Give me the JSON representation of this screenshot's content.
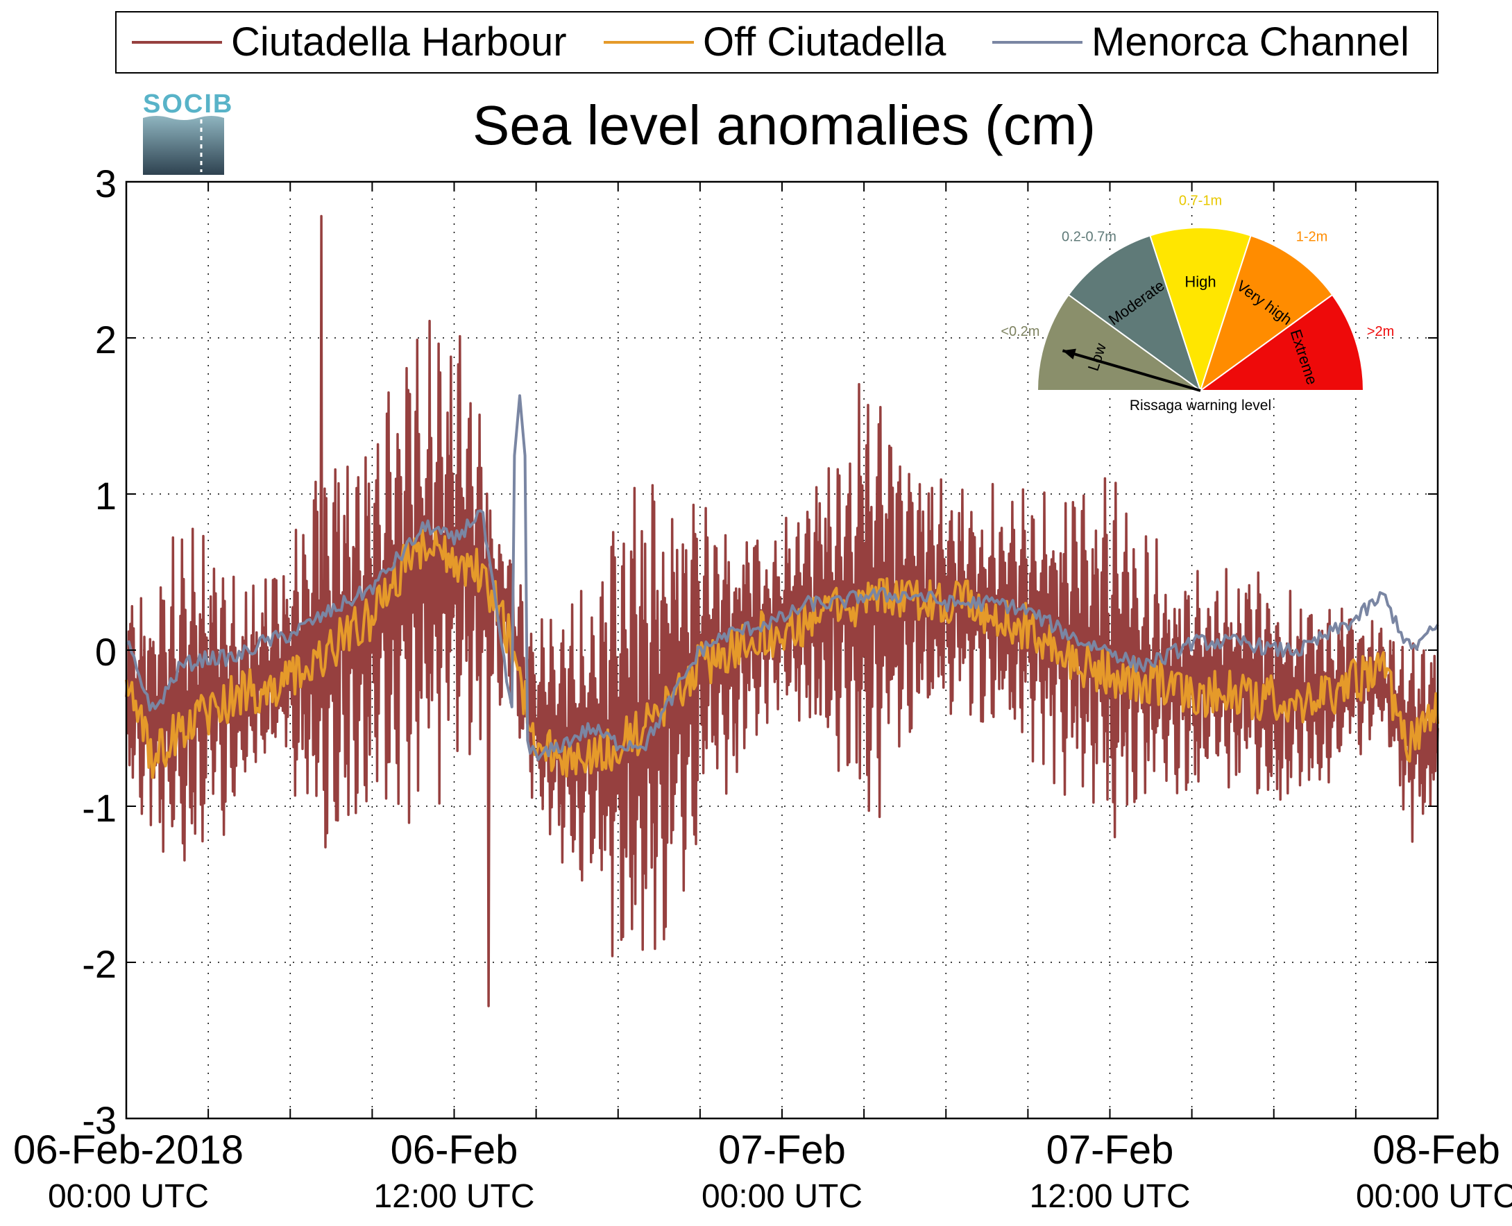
{
  "chart_data": {
    "type": "line",
    "title": "Sea level anomalies (cm)",
    "xlabel": "",
    "ylabel": "",
    "ylim": [
      -3,
      3
    ],
    "yticks": [
      -3,
      -2,
      -1,
      0,
      1,
      2,
      3
    ],
    "y_tick_labels": [
      "-3",
      "-2",
      "-1",
      "0",
      "1",
      "2",
      "3"
    ],
    "xlim": [
      "2018-02-06T00:00",
      "2018-02-08T00:00"
    ],
    "x_tick_labels": [
      {
        "at": "2018-02-06T00:00",
        "date": "06-Feb-2018",
        "time": "00:00 UTC"
      },
      {
        "at": "2018-02-06T12:00",
        "date": "06-Feb",
        "time": "12:00 UTC"
      },
      {
        "at": "2018-02-07T00:00",
        "date": "07-Feb",
        "time": "00:00 UTC"
      },
      {
        "at": "2018-02-07T12:00",
        "date": "07-Feb",
        "time": "12:00 UTC"
      },
      {
        "at": "2018-02-08T00:00",
        "date": "08-Feb",
        "time": "00:00 UTC"
      }
    ],
    "grid": true,
    "legend_position": "top",
    "series": [
      {
        "name": "Ciutadella Harbour",
        "color": "#96403f",
        "x": [
          "2018-02-06T00:00",
          "2018-02-06T01:00",
          "2018-02-06T02:00",
          "2018-02-06T03:00",
          "2018-02-06T04:00",
          "2018-02-06T05:00",
          "2018-02-06T06:00",
          "2018-02-06T07:00",
          "2018-02-06T08:00",
          "2018-02-06T09:00",
          "2018-02-06T10:00",
          "2018-02-06T11:00",
          "2018-02-06T12:00",
          "2018-02-06T13:00",
          "2018-02-06T14:00",
          "2018-02-06T15:00",
          "2018-02-06T16:00",
          "2018-02-06T17:00",
          "2018-02-06T18:00",
          "2018-02-06T19:00",
          "2018-02-06T20:00",
          "2018-02-06T21:00",
          "2018-02-06T22:00",
          "2018-02-06T23:00",
          "2018-02-07T00:00",
          "2018-02-07T01:00",
          "2018-02-07T02:00",
          "2018-02-07T03:00",
          "2018-02-07T04:00",
          "2018-02-07T05:00",
          "2018-02-07T06:00",
          "2018-02-07T07:00",
          "2018-02-07T08:00",
          "2018-02-07T09:00",
          "2018-02-07T10:00",
          "2018-02-07T11:00",
          "2018-02-07T12:00",
          "2018-02-07T13:00",
          "2018-02-07T14:00",
          "2018-02-07T15:00",
          "2018-02-07T16:00",
          "2018-02-07T17:00",
          "2018-02-07T18:00",
          "2018-02-07T19:00",
          "2018-02-07T20:00",
          "2018-02-07T21:00",
          "2018-02-07T22:00",
          "2018-02-07T23:00",
          "2018-02-08T00:00"
        ],
        "mean": [
          -0.3,
          -0.4,
          -0.4,
          -0.3,
          -0.3,
          -0.2,
          -0.1,
          0,
          0.1,
          0.2,
          0.4,
          0.5,
          0.6,
          0.5,
          0.2,
          -0.5,
          -0.6,
          -0.6,
          -0.6,
          -0.5,
          -0.3,
          -0.1,
          0,
          0.1,
          0.2,
          0.2,
          0.3,
          0.3,
          0.3,
          0.3,
          0.3,
          0.3,
          0.2,
          0.2,
          0.1,
          0,
          -0.1,
          -0.1,
          -0.2,
          -0.2,
          -0.2,
          -0.2,
          -0.3,
          -0.3,
          -0.3,
          -0.2,
          -0.2,
          -0.6,
          -0.5
        ],
        "amplitude": [
          0.6,
          0.9,
          1.3,
          1.0,
          0.8,
          0.7,
          0.8,
          1.3,
          1.5,
          1.3,
          1.5,
          1.9,
          1.6,
          1.1,
          0.5,
          0.7,
          0.9,
          1.1,
          1.5,
          1.8,
          1.6,
          1.2,
          1.0,
          0.8,
          0.7,
          0.9,
          1.1,
          1.6,
          1.3,
          1.0,
          0.8,
          0.8,
          0.9,
          0.9,
          1.0,
          1.2,
          1.3,
          1.0,
          0.9,
          0.7,
          0.8,
          0.8,
          0.8,
          0.7,
          0.7,
          0.5,
          0.4,
          0.7,
          0.6
        ],
        "peak_max": 2.78,
        "peak_min": -2.28
      },
      {
        "name": "Off Ciutadella",
        "color": "#e59a2a",
        "x": [
          "2018-02-06T00:00",
          "2018-02-06T01:00",
          "2018-02-06T02:00",
          "2018-02-06T03:00",
          "2018-02-06T04:00",
          "2018-02-06T05:00",
          "2018-02-06T06:00",
          "2018-02-06T07:00",
          "2018-02-06T08:00",
          "2018-02-06T09:00",
          "2018-02-06T10:00",
          "2018-02-06T11:00",
          "2018-02-06T12:00",
          "2018-02-06T13:00",
          "2018-02-06T14:00",
          "2018-02-06T15:00",
          "2018-02-06T16:00",
          "2018-02-06T17:00",
          "2018-02-06T18:00",
          "2018-02-06T19:00",
          "2018-02-06T20:00",
          "2018-02-06T21:00",
          "2018-02-06T22:00",
          "2018-02-06T23:00",
          "2018-02-07T00:00",
          "2018-02-07T01:00",
          "2018-02-07T02:00",
          "2018-02-07T03:00",
          "2018-02-07T04:00",
          "2018-02-07T05:00",
          "2018-02-07T06:00",
          "2018-02-07T07:00",
          "2018-02-07T08:00",
          "2018-02-07T09:00",
          "2018-02-07T10:00",
          "2018-02-07T11:00",
          "2018-02-07T12:00",
          "2018-02-07T13:00",
          "2018-02-07T14:00",
          "2018-02-07T15:00",
          "2018-02-07T16:00",
          "2018-02-07T17:00",
          "2018-02-07T18:00",
          "2018-02-07T19:00",
          "2018-02-07T20:00",
          "2018-02-07T21:00",
          "2018-02-07T22:00",
          "2018-02-07T23:00",
          "2018-02-08T00:00"
        ],
        "values": [
          -0.2,
          -0.7,
          -0.5,
          -0.4,
          -0.3,
          -0.25,
          -0.2,
          -0.1,
          0.1,
          0.2,
          0.5,
          0.7,
          0.6,
          0.5,
          0.1,
          -0.6,
          -0.7,
          -0.7,
          -0.6,
          -0.5,
          -0.3,
          -0.1,
          0,
          0.1,
          0.1,
          0.2,
          0.3,
          0.3,
          0.35,
          0.3,
          0.3,
          0.3,
          0.2,
          0.15,
          0.05,
          -0.1,
          -0.15,
          -0.2,
          -0.2,
          -0.3,
          -0.25,
          -0.3,
          -0.3,
          -0.35,
          -0.3,
          -0.2,
          -0.15,
          -0.6,
          -0.4
        ],
        "noise_amplitude": 0.15
      },
      {
        "name": "Menorca Channel",
        "color": "#7a86a3",
        "x": [
          "2018-02-06T00:00",
          "2018-02-06T01:00",
          "2018-02-06T02:00",
          "2018-02-06T03:00",
          "2018-02-06T04:00",
          "2018-02-06T05:00",
          "2018-02-06T06:00",
          "2018-02-06T07:00",
          "2018-02-06T08:00",
          "2018-02-06T09:00",
          "2018-02-06T10:00",
          "2018-02-06T11:00",
          "2018-02-06T12:00",
          "2018-02-06T13:00",
          "2018-02-06T14:00",
          "2018-02-06T15:00",
          "2018-02-06T16:00",
          "2018-02-06T17:00",
          "2018-02-06T18:00",
          "2018-02-06T19:00",
          "2018-02-06T20:00",
          "2018-02-06T21:00",
          "2018-02-06T22:00",
          "2018-02-06T23:00",
          "2018-02-07T00:00",
          "2018-02-07T01:00",
          "2018-02-07T02:00",
          "2018-02-07T03:00",
          "2018-02-07T04:00",
          "2018-02-07T05:00",
          "2018-02-07T06:00",
          "2018-02-07T07:00",
          "2018-02-07T08:00",
          "2018-02-07T09:00",
          "2018-02-07T10:00",
          "2018-02-07T11:00",
          "2018-02-07T12:00",
          "2018-02-07T13:00",
          "2018-02-07T14:00",
          "2018-02-07T15:00",
          "2018-02-07T16:00",
          "2018-02-07T17:00",
          "2018-02-07T18:00",
          "2018-02-07T19:00",
          "2018-02-07T20:00",
          "2018-02-07T21:00",
          "2018-02-07T22:00",
          "2018-02-07T23:00",
          "2018-02-08T00:00"
        ],
        "values": [
          0.05,
          -0.4,
          -0.1,
          -0.05,
          -0.05,
          0.05,
          0.1,
          0.2,
          0.3,
          0.4,
          0.6,
          0.8,
          0.7,
          0.9,
          -0.3,
          -0.7,
          -0.6,
          -0.5,
          -0.6,
          -0.6,
          -0.3,
          0,
          0.1,
          0.15,
          0.2,
          0.3,
          0.3,
          0.35,
          0.35,
          0.35,
          0.3,
          0.3,
          0.3,
          0.25,
          0.15,
          0.05,
          0,
          -0.1,
          -0.05,
          0.05,
          0.05,
          0.05,
          0,
          0,
          0.1,
          0.2,
          0.35,
          0,
          0.15
        ],
        "noise_amplitude": 0.05,
        "peak_max": 1.63
      }
    ]
  },
  "logo": {
    "text": "SOCIB"
  },
  "gauge": {
    "caption": "Rissaga warning level",
    "pointer_segment": "Low",
    "segments": [
      {
        "label": "Low",
        "range": "<0.2m",
        "color": "#8a8f6b",
        "range_color": "#7d8260"
      },
      {
        "label": "Moderate",
        "range": "0.2-0.7m",
        "color": "#5f7a78",
        "range_color": "#5f7a78"
      },
      {
        "label": "High",
        "range": "0.7-1m",
        "color": "#ffe600",
        "range_color": "#e8c800"
      },
      {
        "label": "Very high",
        "range": "1-2m",
        "color": "#ff8c00",
        "range_color": "#ff8c00"
      },
      {
        "label": "Extreme",
        "range": ">2m",
        "color": "#ee0a0a",
        "range_color": "#ee0a0a"
      }
    ]
  }
}
